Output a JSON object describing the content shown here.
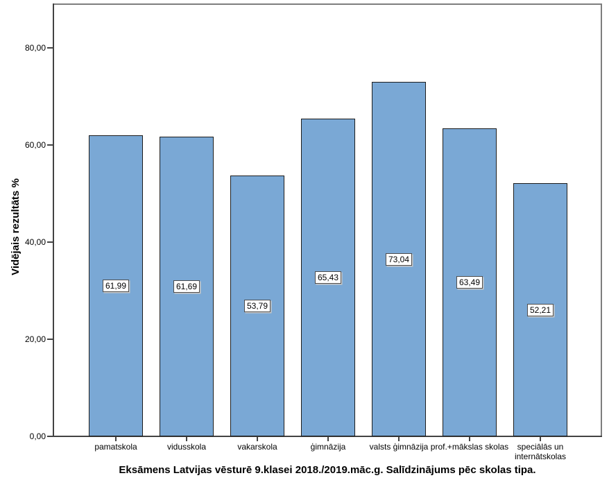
{
  "chart_data": {
    "type": "bar",
    "title": "Eksāmens Latvijas vēsturē 9.klasei 2018./2019.māc.g. Salīdzinājums pēc skolas tipa.",
    "ylabel": "Vidējais rezultāts %",
    "xlabel": "",
    "categories": [
      "pamatskola",
      "vidusskola",
      "vakarskola",
      "ģimnāzija",
      "valsts ģimnāzija",
      "prof.+mākslas skolas",
      "speciālās un internātskolas"
    ],
    "values": [
      61.99,
      61.69,
      53.79,
      65.43,
      73.04,
      63.49,
      52.21
    ],
    "value_labels": [
      "61,99",
      "61,69",
      "53,79",
      "65,43",
      "73,04",
      "63,49",
      "52,21"
    ],
    "y_ticks": [
      {
        "value": 0,
        "label": "0,00"
      },
      {
        "value": 20,
        "label": "20,00"
      },
      {
        "value": 40,
        "label": "40,00"
      },
      {
        "value": 60,
        "label": "60,00"
      },
      {
        "value": 80,
        "label": "80,00"
      }
    ],
    "ylim": [
      0,
      89.3
    ],
    "grid": false,
    "legend_position": "none",
    "value_label_position": "center-of-bar",
    "colors": {
      "background": "#ffffff",
      "text": "#000000",
      "bar_fill": "#7AA8D5",
      "bar_border": "#1c1c1c",
      "plot_frame": "#7d7d7d",
      "axis_line": "#424242",
      "label_box_bg": "#ffffff",
      "label_box_border": "#4c4c4c"
    }
  }
}
